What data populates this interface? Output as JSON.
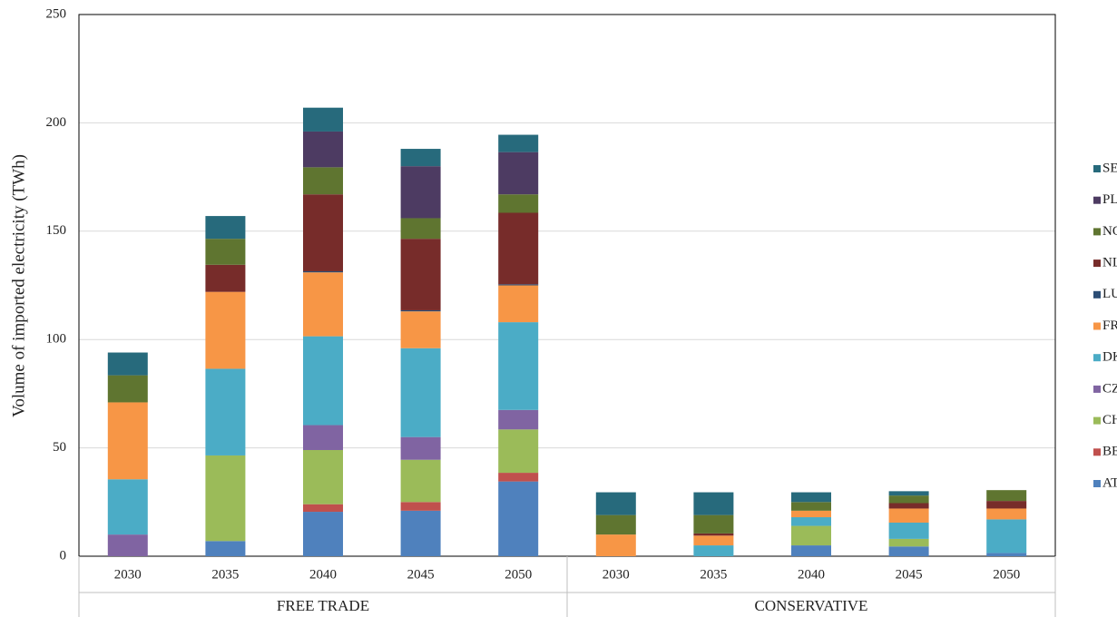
{
  "chart_data": {
    "type": "stacked_bar",
    "y_label": "Volume of imported electricity (TWh)",
    "categories": [
      "2030",
      "2035",
      "2040",
      "2045",
      "2050",
      "2030",
      "2035",
      "2040",
      "2045",
      "2050"
    ],
    "category_groups": [
      "FREE TRADE",
      "CONSERVATIVE"
    ],
    "ylim": [
      0,
      250
    ],
    "yticks": [
      0,
      50,
      100,
      150,
      200,
      250
    ],
    "grid": true,
    "legend": "right",
    "series": [
      {
        "name": "AT",
        "color": "#4f81bd",
        "values": [
          0,
          7,
          20.5,
          21,
          34.5,
          0,
          0,
          5,
          4.5,
          1.5
        ]
      },
      {
        "name": "BE",
        "color": "#c0504d",
        "values": [
          0,
          0,
          3.5,
          4,
          4,
          0,
          0,
          0,
          0,
          0
        ]
      },
      {
        "name": "CH",
        "color": "#9bbb59",
        "values": [
          0,
          39.5,
          25,
          19.5,
          20,
          0,
          0,
          9,
          3.5,
          0
        ]
      },
      {
        "name": "CZ",
        "color": "#8064a2",
        "values": [
          10,
          0,
          11.5,
          10.5,
          9,
          0,
          0,
          0,
          0,
          0
        ]
      },
      {
        "name": "DK",
        "color": "#4bacc6",
        "values": [
          25.5,
          40,
          41,
          41,
          40.5,
          0,
          5,
          4,
          7.5,
          15.5
        ]
      },
      {
        "name": "FR",
        "color": "#f79646",
        "values": [
          35.5,
          35.5,
          29.5,
          17,
          17,
          10,
          4.5,
          3,
          6.5,
          5
        ]
      },
      {
        "name": "LU",
        "color": "#2c4d75",
        "values": [
          0,
          0,
          0.5,
          0.5,
          0.5,
          0,
          0,
          0,
          0,
          0
        ]
      },
      {
        "name": "NL",
        "color": "#772c2a",
        "values": [
          0,
          12.5,
          35.5,
          33,
          33,
          0,
          1,
          0,
          2.5,
          3.5
        ]
      },
      {
        "name": "NO",
        "color": "#5f7530",
        "values": [
          12.5,
          12,
          12.5,
          9.5,
          8.5,
          9,
          8.5,
          4,
          3.5,
          5
        ]
      },
      {
        "name": "PL",
        "color": "#4d3b62",
        "values": [
          0,
          0,
          16.5,
          24,
          19.5,
          0,
          0,
          0,
          0,
          0
        ]
      },
      {
        "name": "SE",
        "color": "#276a7c",
        "values": [
          10.5,
          10.5,
          11,
          8,
          8,
          10.5,
          10.5,
          4.5,
          2,
          0
        ]
      }
    ]
  }
}
